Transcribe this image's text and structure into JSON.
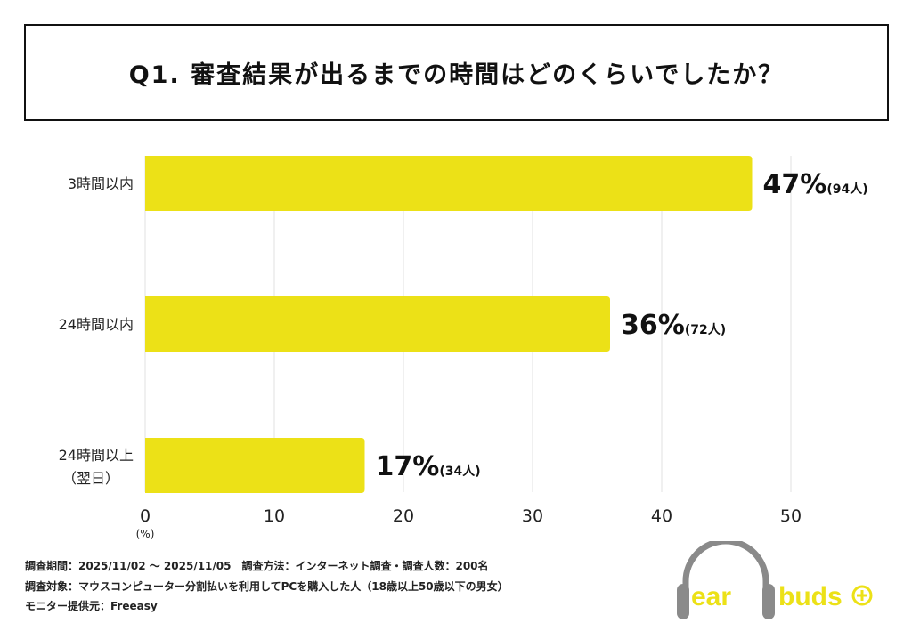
{
  "title": "Q1. 審査結果が出るまでの時間はどのくらいでしたか？",
  "chart_data": {
    "type": "bar",
    "orientation": "horizontal",
    "categories": [
      "3時間以内",
      "24時間以内",
      "24時間以上\n（翌日）"
    ],
    "values": [
      47,
      36,
      17
    ],
    "data_labels": [
      "47%",
      "36%",
      "17%"
    ],
    "counts": [
      "(94人)",
      "(72人)",
      "(34人)"
    ],
    "xlim": [
      0,
      50
    ],
    "xticks": [
      "0",
      "10",
      "20",
      "30",
      "40",
      "50"
    ],
    "xunit": "(%)",
    "grid": true,
    "bar_color": "#ece117"
  },
  "footer": {
    "line1": "調査期間：2025/11/02 ～ 2025/11/05　調査方法：インターネット調査・調査人数：200名",
    "line2": "調査対象：マウスコンピューター分割払いを利用してPCを購入した人（18歳以上50歳以下の男女）",
    "line3": "モニター提供元：Freeasy"
  },
  "logo": {
    "text": "earbuds",
    "colors": {
      "yellow": "#ece117",
      "gray": "#8a8a8a"
    }
  }
}
